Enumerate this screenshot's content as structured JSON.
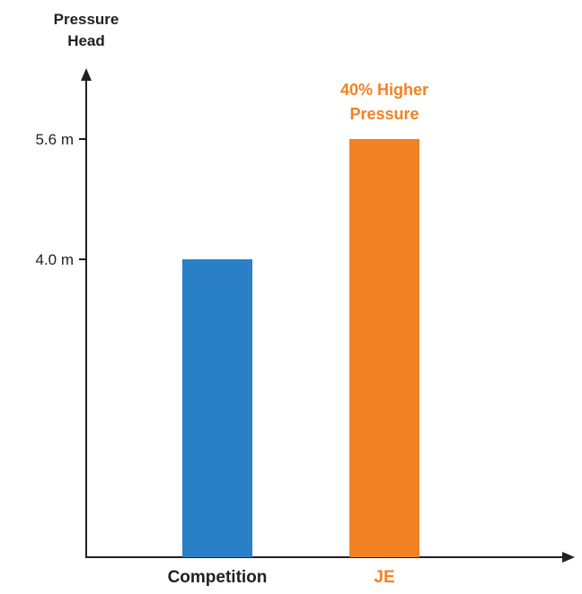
{
  "chart_data": {
    "type": "bar",
    "ylabel_lines": [
      "Pressure",
      "Head"
    ],
    "xlabel": "",
    "title": "",
    "categories": [
      "Competition",
      "JE"
    ],
    "values": [
      4.0,
      5.6
    ],
    "y_ticks": [
      {
        "value": 4.0,
        "label": "4.0 m"
      },
      {
        "value": 5.6,
        "label": "5.6 m"
      }
    ],
    "ylim": [
      0,
      6.5
    ],
    "grid": false,
    "annotation": {
      "lines": [
        "40% Higher",
        "Pressure"
      ],
      "category": "JE"
    },
    "colors": {
      "Competition": "#2a80c6",
      "JE": "#f28123",
      "axis": "#231f20",
      "text": "#231f20",
      "highlight_text": "#f28123"
    }
  }
}
